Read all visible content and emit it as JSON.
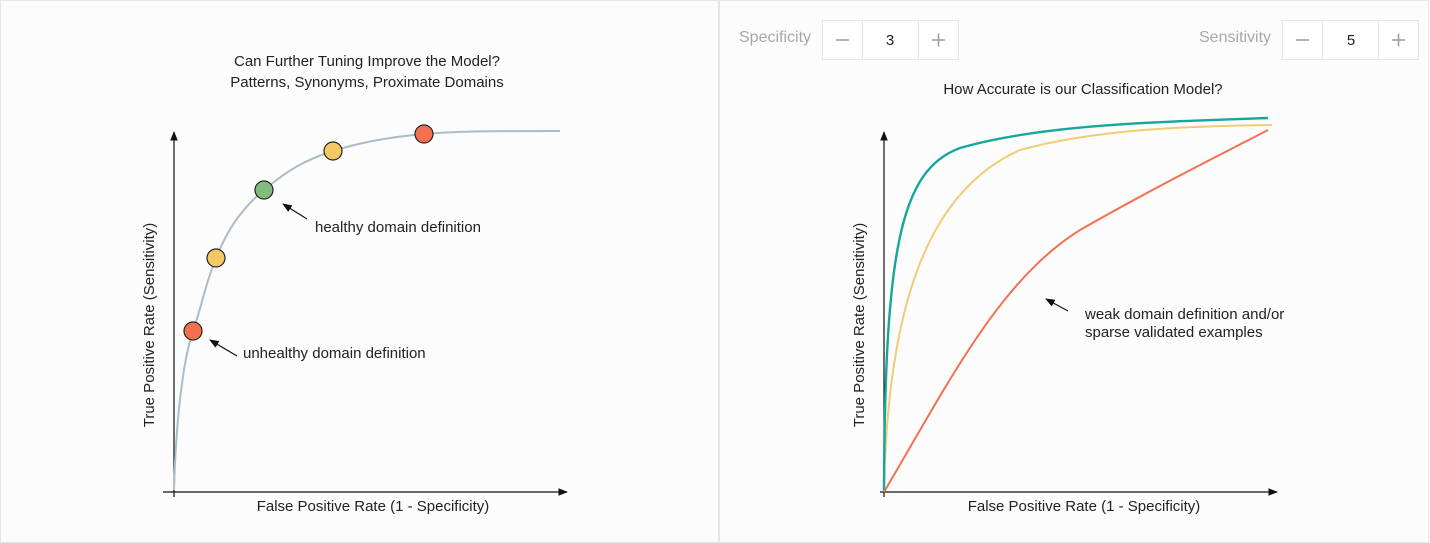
{
  "left_panel": {
    "title": [
      "Can Further Tuning Improve the Model?",
      "Patterns, Synonyms, Proximate Domains"
    ],
    "annotations": [
      "healthy domain definition",
      "unhealthy domain definition"
    ],
    "y_axis_label": "True Positive Rate (Sensitivity)",
    "x_axis_label": "False Positive Rate (1 - Specificity)"
  },
  "right_panel": {
    "controls": [
      {
        "label": "Specificity",
        "value": 3
      },
      {
        "label": "Sensitivity",
        "value": 5
      }
    ],
    "title": "How Accurate is our Classification Model?",
    "annotation": [
      "weak domain definition and/or",
      "sparse validated examples"
    ],
    "y_axis_label": "True Positive Rate (Sensitivity)",
    "x_axis_label": "False Positive Rate (1 - Specificity)"
  }
}
